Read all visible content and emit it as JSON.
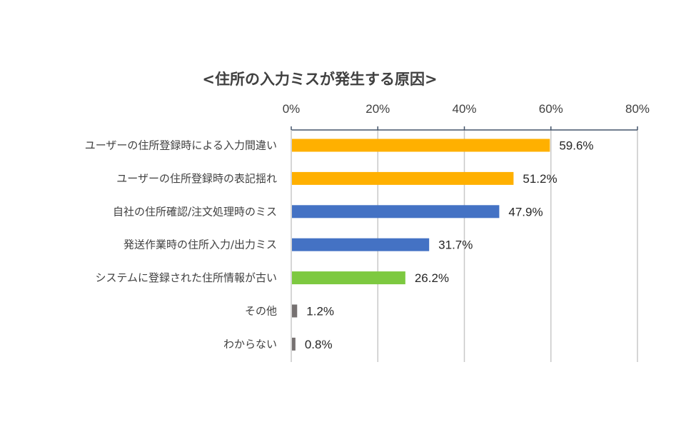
{
  "chart_data": {
    "type": "bar",
    "orientation": "horizontal",
    "title": "<住所の入力ミスが発生する原因>",
    "categories": [
      "ユーザーの住所登録時による入力間違い",
      "ユーザーの住所登録時の表記揺れ",
      "自社の住所確認/注文処理時のミス",
      "発送作業時の住所入力/出力ミス",
      "システムに登録された住所情報が古い",
      "その他",
      "わからない"
    ],
    "values": [
      59.6,
      51.2,
      47.9,
      31.7,
      26.2,
      1.2,
      0.8
    ],
    "value_labels": [
      "59.6%",
      "51.2%",
      "47.9%",
      "31.7%",
      "26.2%",
      "1.2%",
      "0.8%"
    ],
    "bar_colors": [
      "#FFB000",
      "#FFB000",
      "#4472C4",
      "#4472C4",
      "#7DC940",
      "#767171",
      "#767171"
    ],
    "xlim": [
      0,
      80
    ],
    "x_ticks": [
      0,
      20,
      40,
      60,
      80
    ],
    "x_tick_labels": [
      "0%",
      "20%",
      "40%",
      "60%",
      "80%"
    ],
    "x_axis_position": "top",
    "grid": true,
    "colors": {
      "axis": "#44546A",
      "grid": "#C8C8C8"
    }
  }
}
